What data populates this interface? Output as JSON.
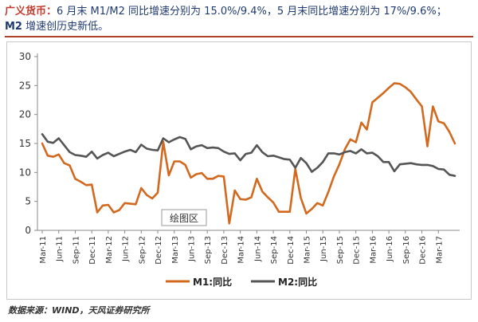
{
  "header": {
    "lead": "广义货币：",
    "line1": "6 月末 M1/M2 同比增速分别为 15.0%/9.4%，5 月末同比增速分别为 17%/9.6%；",
    "line2_bold": "M2",
    "line2": " 增速创历史新低。"
  },
  "plot_area_label": "绘图区",
  "source": "数据来源：WIND，天风证券研究所",
  "colors": {
    "m1": "#d2691e",
    "m2": "#555555",
    "axis": "#888888"
  },
  "chart_data": {
    "type": "line",
    "x": [
      "Mar-11",
      "Apr-11",
      "May-11",
      "Jun-11",
      "Jul-11",
      "Aug-11",
      "Sep-11",
      "Oct-11",
      "Nov-11",
      "Dec-11",
      "Jan-12",
      "Feb-12",
      "Mar-12",
      "Apr-12",
      "May-12",
      "Jun-12",
      "Jul-12",
      "Aug-12",
      "Sep-12",
      "Oct-12",
      "Nov-12",
      "Dec-12",
      "Jan-13",
      "Feb-13",
      "Mar-13",
      "Apr-13",
      "May-13",
      "Jun-13",
      "Jul-13",
      "Aug-13",
      "Sep-13",
      "Oct-13",
      "Nov-13",
      "Dec-13",
      "Jan-14",
      "Feb-14",
      "Mar-14",
      "Apr-14",
      "May-14",
      "Jun-14",
      "Jul-14",
      "Aug-14",
      "Sep-14",
      "Oct-14",
      "Nov-14",
      "Dec-14",
      "Jan-15",
      "Feb-15",
      "Mar-15",
      "Apr-15",
      "May-15",
      "Jun-15",
      "Jul-15",
      "Aug-15",
      "Sep-15",
      "Oct-15",
      "Nov-15",
      "Dec-15",
      "Jan-16",
      "Feb-16",
      "Mar-16",
      "Apr-16",
      "May-16",
      "Jun-16",
      "Jul-16",
      "Aug-16",
      "Sep-16",
      "Oct-16",
      "Nov-16",
      "Dec-16",
      "Jan-17",
      "Feb-17",
      "Mar-17",
      "Apr-17",
      "May-17",
      "Jun-17"
    ],
    "xticks": [
      "Mar-11",
      "Jun-11",
      "Sep-11",
      "Dec-11",
      "Mar-12",
      "Jun-12",
      "Sep-12",
      "Dec-12",
      "Mar-13",
      "Jun-13",
      "Sep-13",
      "Dec-13",
      "Mar-14",
      "Jun-14",
      "Sep-14",
      "Dec-14",
      "Mar-15",
      "Jun-15",
      "Sep-15",
      "Dec-15",
      "Mar-16",
      "Jun-16",
      "Sep-16",
      "Dec-16",
      "Mar-17"
    ],
    "series": [
      {
        "name": "M1:同比",
        "values": [
          15.0,
          12.9,
          12.7,
          13.1,
          11.6,
          11.2,
          8.9,
          8.4,
          7.8,
          7.9,
          3.1,
          4.3,
          4.4,
          3.1,
          3.5,
          4.7,
          4.6,
          4.5,
          7.3,
          6.1,
          5.5,
          6.5,
          15.3,
          9.5,
          11.9,
          11.9,
          11.3,
          9.1,
          9.7,
          9.9,
          8.9,
          8.9,
          9.4,
          9.3,
          1.2,
          6.9,
          5.4,
          5.3,
          5.7,
          8.9,
          6.7,
          5.7,
          4.8,
          3.2,
          3.2,
          3.2,
          10.6,
          5.6,
          2.9,
          3.7,
          4.7,
          4.3,
          6.6,
          9.3,
          11.4,
          14.0,
          15.7,
          15.2,
          18.6,
          17.4,
          22.1,
          22.9,
          23.7,
          24.6,
          25.4,
          25.3,
          24.7,
          23.9,
          22.6,
          21.4,
          14.5,
          21.4,
          18.8,
          18.5,
          17.0,
          15.0
        ]
      },
      {
        "name": "M2:同比",
        "values": [
          16.6,
          15.3,
          15.1,
          15.9,
          14.7,
          13.5,
          13.0,
          12.9,
          12.7,
          13.6,
          12.4,
          13.0,
          13.4,
          12.8,
          13.2,
          13.6,
          13.9,
          13.5,
          14.8,
          14.1,
          13.9,
          13.8,
          15.9,
          15.2,
          15.7,
          16.1,
          15.8,
          14.0,
          14.5,
          14.7,
          14.2,
          14.3,
          14.2,
          13.6,
          13.2,
          13.3,
          12.1,
          13.2,
          13.4,
          14.7,
          13.5,
          12.8,
          12.9,
          12.6,
          12.3,
          12.2,
          10.8,
          12.5,
          11.6,
          10.1,
          10.8,
          11.8,
          13.3,
          13.3,
          13.1,
          13.5,
          13.7,
          13.3,
          14.0,
          13.3,
          13.4,
          12.8,
          11.8,
          11.8,
          10.2,
          11.4,
          11.5,
          11.6,
          11.4,
          11.3,
          11.3,
          11.1,
          10.6,
          10.5,
          9.6,
          9.4
        ]
      }
    ],
    "ylim": [
      0,
      30
    ],
    "yticks": [
      0,
      5,
      10,
      15,
      20,
      25,
      30
    ],
    "xlabel": "",
    "ylabel": "",
    "grid": false,
    "legend": "bottom"
  }
}
